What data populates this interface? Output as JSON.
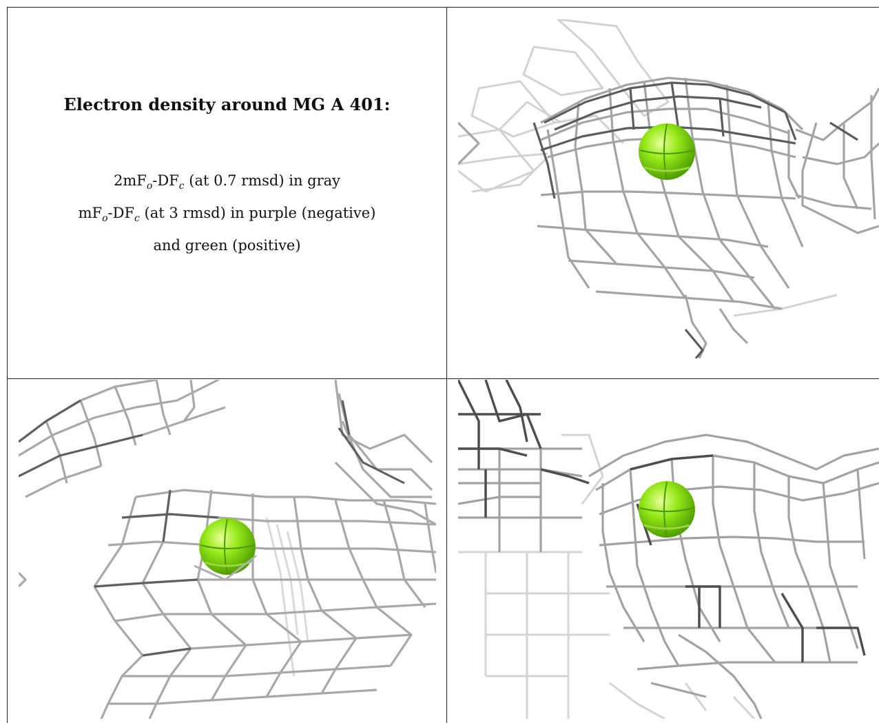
{
  "caption": {
    "title": "Electron density around MG A 401:",
    "line1_prefix": "2mF",
    "line1_sub1": "o",
    "line1_mid": "-DF",
    "line1_sub2": "c",
    "line1_suffix": " (at 0.7 rmsd) in gray",
    "line2_prefix": "mF",
    "line2_sub1": "o",
    "line2_mid": "-DF",
    "line2_sub2": "c",
    "line2_suffix": " (at 3 rmsd) in purple (negative)",
    "line3": "and green (positive)"
  },
  "colors": {
    "mesh_dark": "#555555",
    "mesh_mid": "#8a8a8a",
    "mesh_light": "#c8c8c8",
    "atom_green": "#7fe000",
    "border": "#222222"
  },
  "panels": [
    {
      "id": "top-right",
      "atom": "MG"
    },
    {
      "id": "bottom-left",
      "atom": "MG"
    },
    {
      "id": "bottom-right",
      "atom": "MG"
    }
  ]
}
